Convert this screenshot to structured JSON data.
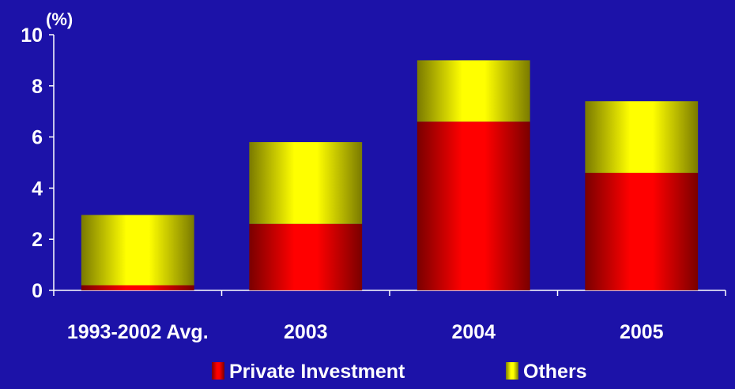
{
  "colors": {
    "background": "#1c12a8",
    "private_investment": "#ff0000",
    "others": "#ffff00",
    "axis": "#ffffff",
    "text": "#ffffff"
  },
  "chart_data": {
    "type": "bar",
    "stacked": true,
    "unit_label": "(%)",
    "categories": [
      "1993-2002 Avg.",
      "2003",
      "2004",
      "2005"
    ],
    "series": [
      {
        "name": "Private Investment",
        "color": "#ff0000",
        "values": [
          0.2,
          2.6,
          6.6,
          4.6
        ]
      },
      {
        "name": "Others",
        "color": "#ffff00",
        "values": [
          2.75,
          3.2,
          2.4,
          2.8
        ]
      }
    ],
    "ylim": [
      0,
      10
    ],
    "yticks": [
      "0",
      "2",
      "4",
      "6",
      "8",
      "10"
    ],
    "grid": false,
    "legend_position": "bottom"
  }
}
